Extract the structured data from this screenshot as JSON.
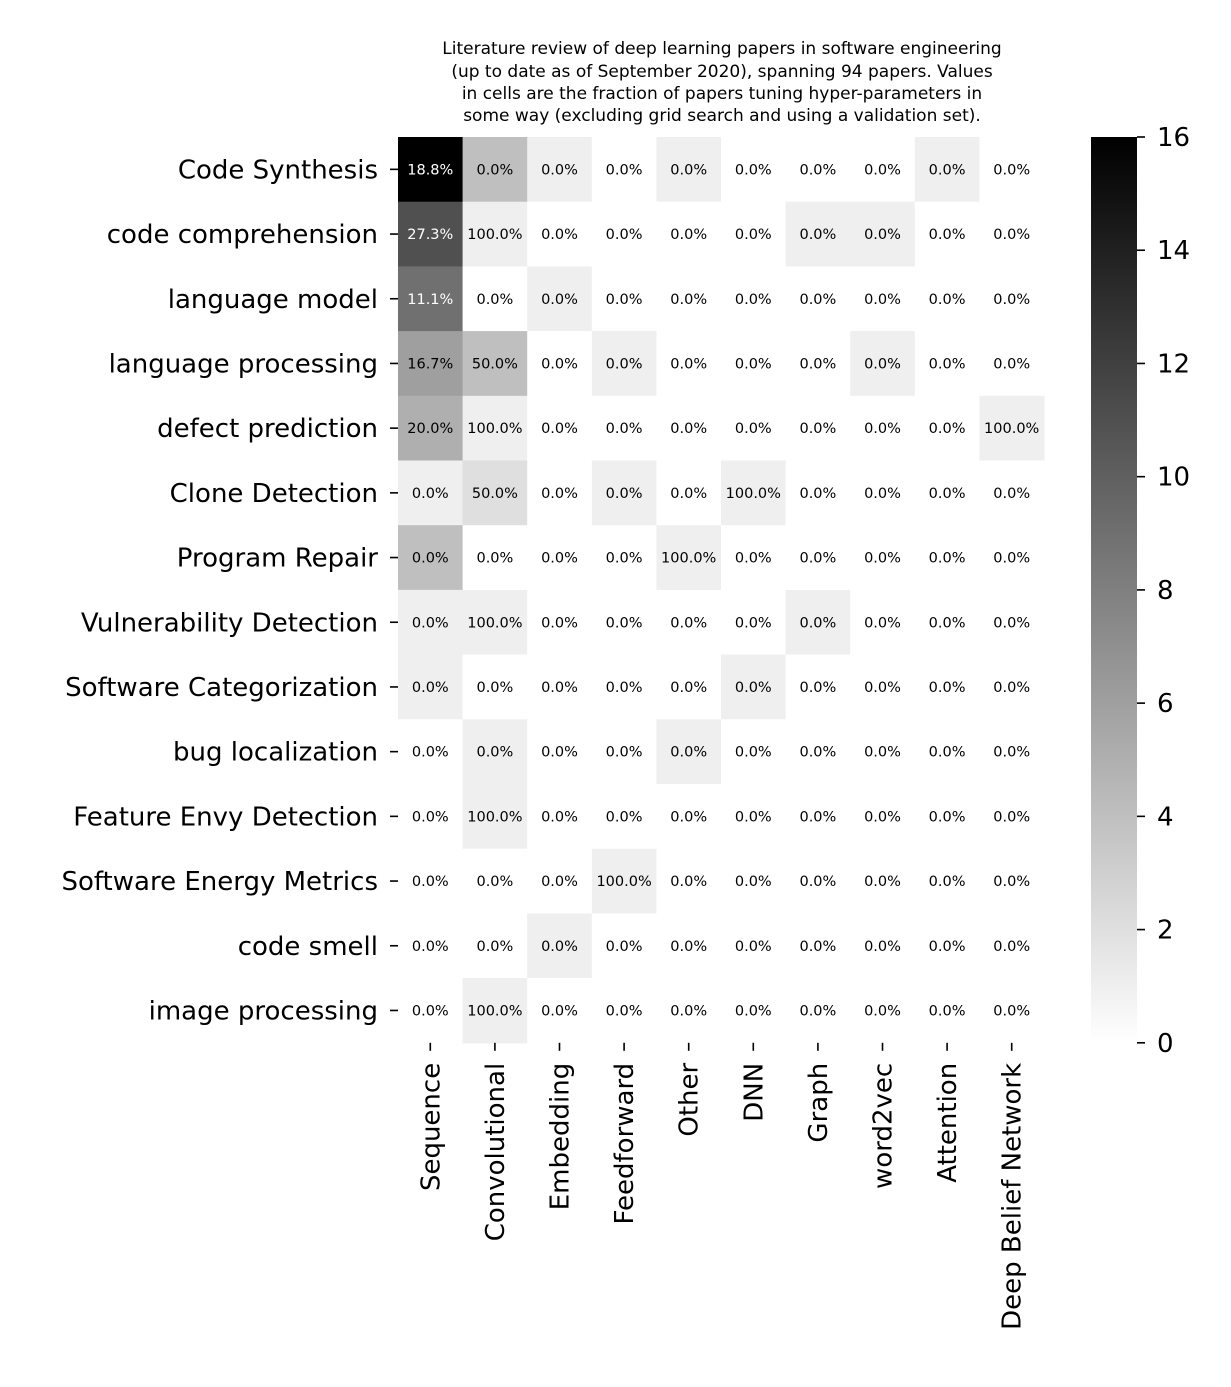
{
  "chart_data": {
    "type": "heatmap",
    "title_lines": [
      "Literature review of deep learning papers in software engineering",
      "(up to date as of September 2020), spanning 94 papers. Values",
      "in cells are the fraction of papers tuning hyper-parameters in",
      "some way (excluding grid search and using a validation set)."
    ],
    "rows": [
      "Code Synthesis",
      "code comprehension",
      "language model",
      "language processing",
      "defect prediction",
      "Clone Detection",
      "Program Repair",
      "Vulnerability Detection",
      "Software Categorization",
      "bug localization",
      "Feature Envy Detection",
      "Software Energy Metrics",
      "code smell",
      "image processing"
    ],
    "columns": [
      "Sequence",
      "Convolutional",
      "Embedding",
      "Feedforward",
      "Other",
      "DNN",
      "Graph",
      "word2vec",
      "Attention",
      "Deep Belief Network"
    ],
    "counts": [
      [
        16,
        4,
        1,
        0,
        1,
        0,
        0,
        0,
        1,
        0
      ],
      [
        11,
        1,
        0,
        0,
        0,
        0,
        1,
        1,
        0,
        0
      ],
      [
        9,
        0,
        1,
        0,
        0,
        0,
        0,
        0,
        0,
        0
      ],
      [
        6,
        4,
        0,
        1,
        0,
        0,
        0,
        1,
        0,
        0
      ],
      [
        5,
        1,
        0,
        0,
        0,
        0,
        0,
        0,
        0,
        1
      ],
      [
        1,
        2,
        0,
        1,
        0,
        1,
        0,
        0,
        0,
        0
      ],
      [
        4,
        0,
        0,
        0,
        1,
        0,
        0,
        0,
        0,
        0
      ],
      [
        1,
        1,
        0,
        0,
        0,
        0,
        1,
        0,
        0,
        0
      ],
      [
        1,
        0,
        0,
        0,
        0,
        1,
        0,
        0,
        0,
        0
      ],
      [
        0,
        1,
        0,
        0,
        1,
        0,
        0,
        0,
        0,
        0
      ],
      [
        0,
        1,
        0,
        0,
        0,
        0,
        0,
        0,
        0,
        0
      ],
      [
        0,
        0,
        0,
        1,
        0,
        0,
        0,
        0,
        0,
        0
      ],
      [
        0,
        0,
        1,
        0,
        0,
        0,
        0,
        0,
        0,
        0
      ],
      [
        0,
        1,
        0,
        0,
        0,
        0,
        0,
        0,
        0,
        0
      ]
    ],
    "cell_labels": [
      [
        "18.8%",
        "0.0%",
        "0.0%",
        "0.0%",
        "0.0%",
        "0.0%",
        "0.0%",
        "0.0%",
        "0.0%",
        "0.0%"
      ],
      [
        "27.3%",
        "100.0%",
        "0.0%",
        "0.0%",
        "0.0%",
        "0.0%",
        "0.0%",
        "0.0%",
        "0.0%",
        "0.0%"
      ],
      [
        "11.1%",
        "0.0%",
        "0.0%",
        "0.0%",
        "0.0%",
        "0.0%",
        "0.0%",
        "0.0%",
        "0.0%",
        "0.0%"
      ],
      [
        "16.7%",
        "50.0%",
        "0.0%",
        "0.0%",
        "0.0%",
        "0.0%",
        "0.0%",
        "0.0%",
        "0.0%",
        "0.0%"
      ],
      [
        "20.0%",
        "100.0%",
        "0.0%",
        "0.0%",
        "0.0%",
        "0.0%",
        "0.0%",
        "0.0%",
        "0.0%",
        "100.0%"
      ],
      [
        "0.0%",
        "50.0%",
        "0.0%",
        "0.0%",
        "0.0%",
        "100.0%",
        "0.0%",
        "0.0%",
        "0.0%",
        "0.0%"
      ],
      [
        "0.0%",
        "0.0%",
        "0.0%",
        "0.0%",
        "100.0%",
        "0.0%",
        "0.0%",
        "0.0%",
        "0.0%",
        "0.0%"
      ],
      [
        "0.0%",
        "100.0%",
        "0.0%",
        "0.0%",
        "0.0%",
        "0.0%",
        "0.0%",
        "0.0%",
        "0.0%",
        "0.0%"
      ],
      [
        "0.0%",
        "0.0%",
        "0.0%",
        "0.0%",
        "0.0%",
        "0.0%",
        "0.0%",
        "0.0%",
        "0.0%",
        "0.0%"
      ],
      [
        "0.0%",
        "0.0%",
        "0.0%",
        "0.0%",
        "0.0%",
        "0.0%",
        "0.0%",
        "0.0%",
        "0.0%",
        "0.0%"
      ],
      [
        "0.0%",
        "100.0%",
        "0.0%",
        "0.0%",
        "0.0%",
        "0.0%",
        "0.0%",
        "0.0%",
        "0.0%",
        "0.0%"
      ],
      [
        "0.0%",
        "0.0%",
        "0.0%",
        "100.0%",
        "0.0%",
        "0.0%",
        "0.0%",
        "0.0%",
        "0.0%",
        "0.0%"
      ],
      [
        "0.0%",
        "0.0%",
        "0.0%",
        "0.0%",
        "0.0%",
        "0.0%",
        "0.0%",
        "0.0%",
        "0.0%",
        "0.0%"
      ],
      [
        "0.0%",
        "100.0%",
        "0.0%",
        "0.0%",
        "0.0%",
        "0.0%",
        "0.0%",
        "0.0%",
        "0.0%",
        "0.0%"
      ]
    ],
    "colorbar": {
      "min": 0,
      "max": 16,
      "ticks": [
        0,
        2,
        4,
        6,
        8,
        10,
        12,
        14,
        16
      ],
      "colormap": "white-to-black",
      "low_color": "#ffffff",
      "high_color": "#000000"
    }
  }
}
